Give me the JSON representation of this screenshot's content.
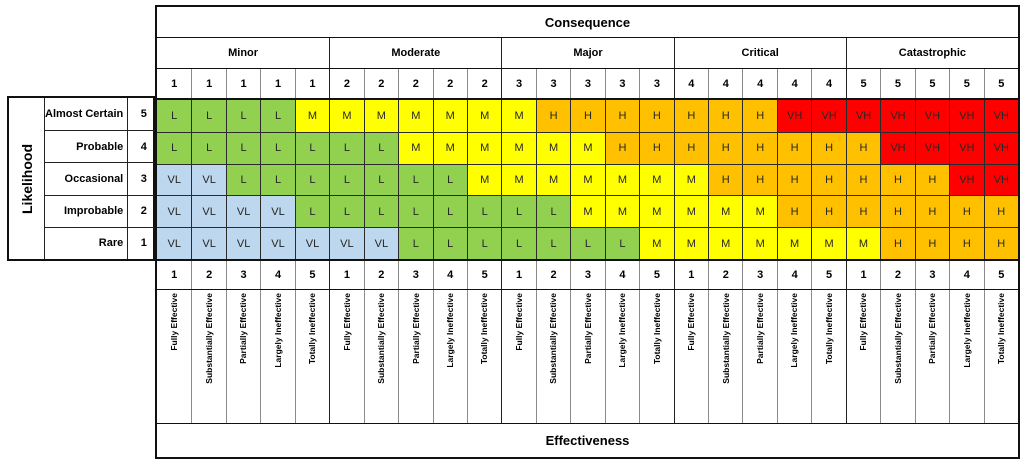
{
  "chart_data": {
    "type": "heatmap",
    "title": "Risk matrix: Likelihood vs Consequence with control Effectiveness",
    "top_axis": {
      "title": "Consequence",
      "groups": [
        "Minor",
        "Moderate",
        "Major",
        "Critical",
        "Catastrophic"
      ],
      "group_levels": [
        "1",
        "2",
        "3",
        "4",
        "5"
      ]
    },
    "left_axis": {
      "title": "Likelihood",
      "rows": [
        {
          "label": "Almost Certain",
          "level": "5"
        },
        {
          "label": "Probable",
          "level": "4"
        },
        {
          "label": "Occasional",
          "level": "3"
        },
        {
          "label": "Improbable",
          "level": "2"
        },
        {
          "label": "Rare",
          "level": "1"
        }
      ]
    },
    "bottom_axis": {
      "title": "Effectiveness",
      "levels": [
        "1",
        "2",
        "3",
        "4",
        "5"
      ],
      "level_labels": [
        "Fully Effective",
        "Substantially Effective",
        "Partially Effective",
        "Largely Ineffective",
        "Totally Ineffective"
      ]
    },
    "rating_colors": {
      "VL": "#BDD7EE",
      "L": "#92D050",
      "M": "#FFFF00",
      "H": "#FFC000",
      "VH": "#FF0000"
    },
    "cells": [
      [
        "L",
        "L",
        "L",
        "L",
        "M",
        "M",
        "M",
        "M",
        "M",
        "M",
        "M",
        "H",
        "H",
        "H",
        "H",
        "H",
        "H",
        "H",
        "VH",
        "VH",
        "VH",
        "VH",
        "VH",
        "VH",
        "VH"
      ],
      [
        "L",
        "L",
        "L",
        "L",
        "L",
        "L",
        "L",
        "M",
        "M",
        "M",
        "M",
        "M",
        "M",
        "H",
        "H",
        "H",
        "H",
        "H",
        "H",
        "H",
        "H",
        "VH",
        "VH",
        "VH",
        "VH"
      ],
      [
        "VL",
        "VL",
        "L",
        "L",
        "L",
        "L",
        "L",
        "L",
        "L",
        "M",
        "M",
        "M",
        "M",
        "M",
        "M",
        "M",
        "H",
        "H",
        "H",
        "H",
        "H",
        "H",
        "H",
        "VH",
        "VH"
      ],
      [
        "VL",
        "VL",
        "VL",
        "VL",
        "L",
        "L",
        "L",
        "L",
        "L",
        "L",
        "L",
        "L",
        "M",
        "M",
        "M",
        "M",
        "M",
        "M",
        "H",
        "H",
        "H",
        "H",
        "H",
        "H",
        "H"
      ],
      [
        "VL",
        "VL",
        "VL",
        "VL",
        "VL",
        "VL",
        "VL",
        "L",
        "L",
        "L",
        "L",
        "L",
        "L",
        "L",
        "M",
        "M",
        "M",
        "M",
        "M",
        "M",
        "M",
        "H",
        "H",
        "H",
        "H"
      ]
    ]
  }
}
